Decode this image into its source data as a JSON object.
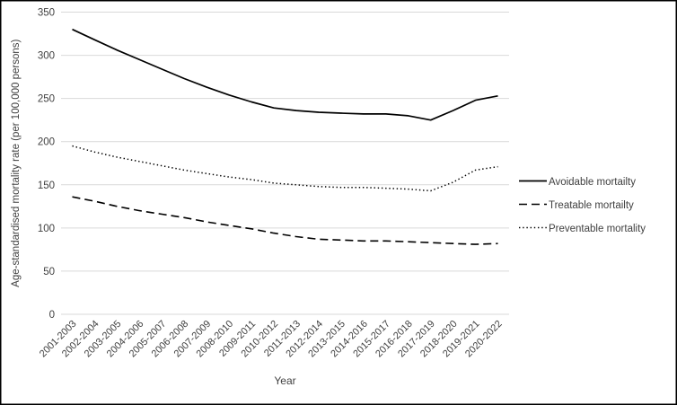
{
  "colors": {
    "background": "#ffffff",
    "border": "#000000",
    "line": "#000000",
    "grid": "#d9d9d9",
    "text": "#404040"
  },
  "chart_data": {
    "type": "line",
    "title": "",
    "xlabel": "Year",
    "ylabel": "Age-standardised mortality rate (per 100,000 persons)",
    "ylim": [
      0,
      350
    ],
    "ytick_step": 50,
    "yticks": [
      0,
      50,
      100,
      150,
      200,
      250,
      300,
      350
    ],
    "grid": "horizontal",
    "legend_position": "right",
    "categories": [
      "2001-2003",
      "2002-2004",
      "2003-2005",
      "2004-2006",
      "2005-2007",
      "2006-2008",
      "2007-2009",
      "2008-2010",
      "2009-2011",
      "2010-2012",
      "2011-2013",
      "2012-2014",
      "2013-2015",
      "2014-2016",
      "2015-2017",
      "2016-2018",
      "2017-2019",
      "2018-2020",
      "2019-2021",
      "2020-2022"
    ],
    "series": [
      {
        "name": "Avoidable mortailty",
        "style": "solid",
        "values": [
          330,
          318,
          306,
          295,
          284,
          273,
          263,
          254,
          246,
          239,
          236,
          234,
          233,
          232,
          232,
          230,
          225,
          236,
          248,
          253
        ]
      },
      {
        "name": "Treatable mortailty",
        "style": "dashed",
        "values": [
          136,
          131,
          125,
          120,
          116,
          112,
          107,
          103,
          99,
          94,
          90,
          87,
          86,
          85,
          85,
          84,
          83,
          82,
          81,
          82
        ]
      },
      {
        "name": "Preventable mortality",
        "style": "dotted",
        "values": [
          195,
          188,
          182,
          177,
          172,
          167,
          163,
          159,
          156,
          152,
          150,
          148,
          147,
          147,
          146,
          145,
          143,
          153,
          167,
          171
        ]
      }
    ]
  }
}
